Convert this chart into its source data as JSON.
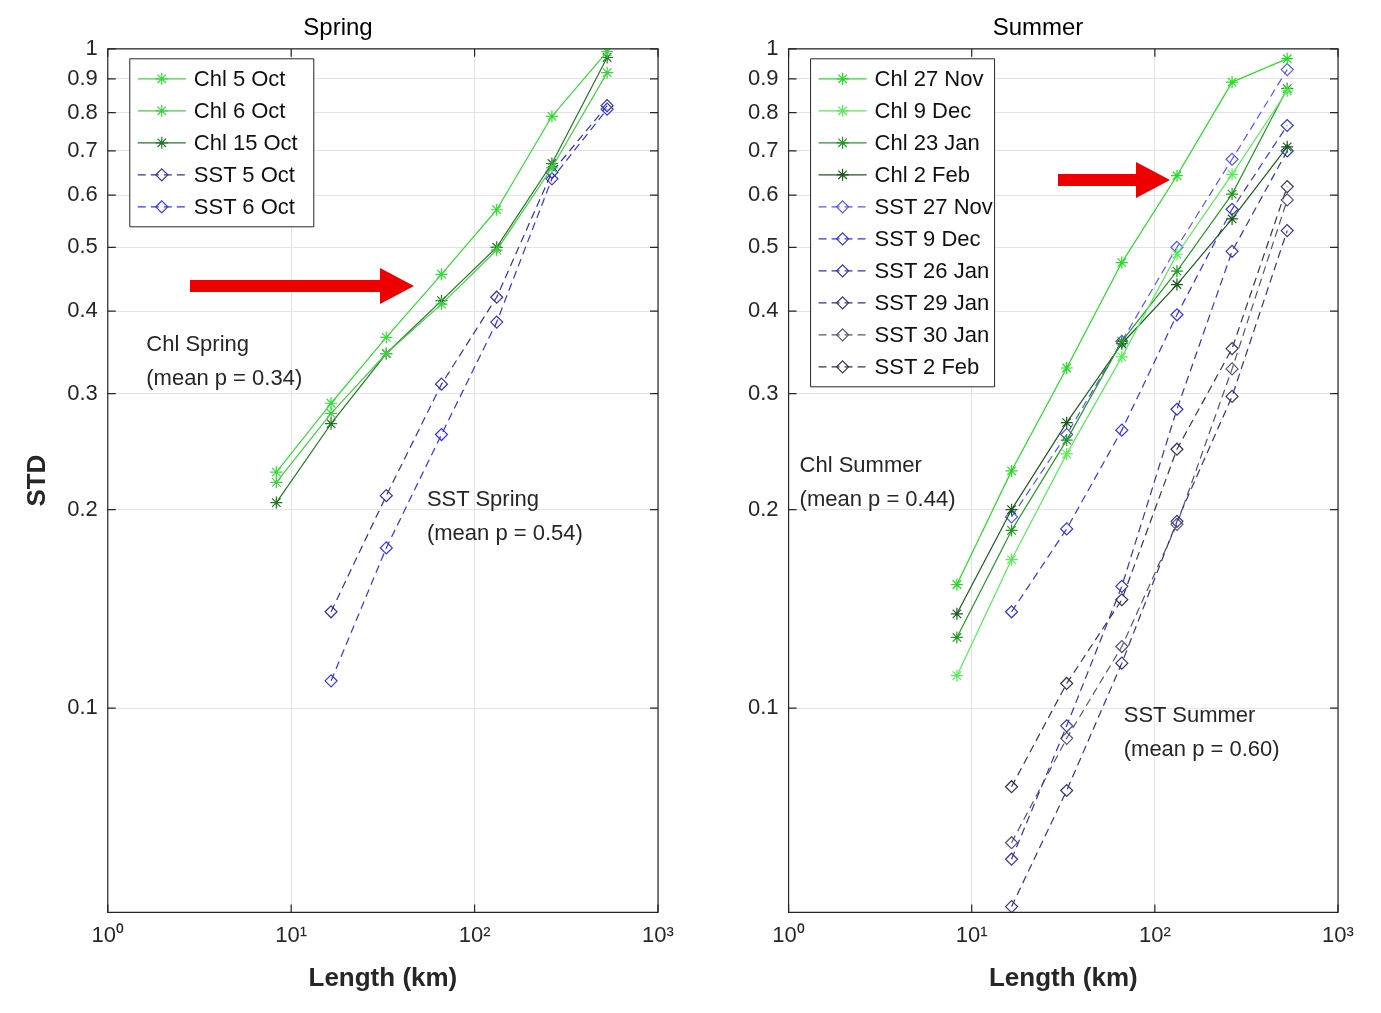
{
  "chart_data": [
    {
      "type": "line",
      "title": "Spring",
      "xlabel": "Length (km)",
      "ylabel": "STD",
      "log": "xy",
      "grid": true,
      "legend": "top left",
      "x": [
        8.3,
        16.5,
        33,
        66,
        132,
        264,
        528
      ],
      "xlim": [
        1,
        1000
      ],
      "xticks": [
        {
          "value": 1,
          "label": "10⁰"
        },
        {
          "value": 10,
          "label": "10¹"
        },
        {
          "value": 100,
          "label": "10²"
        },
        {
          "value": 1000,
          "label": "10³"
        }
      ],
      "ylim": [
        0.049,
        1
      ],
      "yticks": [
        0.1,
        0.2,
        0.3,
        0.4,
        0.5,
        0.6,
        0.7,
        0.8,
        0.9,
        1
      ],
      "annotations": [
        "Chl Spring\n(mean p = 0.34)",
        "SST Spring\n(mean p = 0.54)"
      ],
      "series": [
        {
          "name": "Chl 5 Oct",
          "color": "#33dd33",
          "marker": "cross",
          "line_style": "solid",
          "values": [
            0.228,
            0.29,
            0.365,
            0.455,
            0.57,
            0.79,
            0.99
          ]
        },
        {
          "name": "Chl 6 Oct",
          "color": "#44cc44",
          "marker": "cross",
          "line_style": "solid",
          "values": [
            0.22,
            0.28,
            0.345,
            0.41,
            0.495,
            0.66,
            0.92
          ]
        },
        {
          "name": "Chl 15 Oct",
          "color": "#227722",
          "marker": "cross",
          "line_style": "solid",
          "values": [
            0.205,
            0.27,
            0.345,
            0.415,
            0.5,
            0.67,
            0.97
          ]
        },
        {
          "name": "SST 5 Oct",
          "color": "#333399",
          "marker": "diamond",
          "line_style": "dashed",
          "values": [
            null,
            0.14,
            0.21,
            0.31,
            0.42,
            0.65,
            0.82
          ]
        },
        {
          "name": "SST 6 Oct",
          "color": "#3333ee",
          "marker": "diamond",
          "line_style": "dashed",
          "values": [
            null,
            0.11,
            0.175,
            0.26,
            0.385,
            0.635,
            0.81
          ]
        }
      ]
    },
    {
      "type": "line",
      "title": "Summer",
      "xlabel": "Length (km)",
      "log": "xy",
      "grid": true,
      "legend": "top left",
      "x": [
        8.3,
        16.5,
        33,
        66,
        132,
        264,
        528
      ],
      "xlim": [
        1,
        1000
      ],
      "xticks": [
        {
          "value": 1,
          "label": "10⁰"
        },
        {
          "value": 10,
          "label": "10¹"
        },
        {
          "value": 100,
          "label": "10²"
        },
        {
          "value": 1000,
          "label": "10³"
        }
      ],
      "ylim": [
        0.049,
        1
      ],
      "yticks": [
        0.1,
        0.2,
        0.3,
        0.4,
        0.5,
        0.6,
        0.7,
        0.8,
        0.9,
        1
      ],
      "annotations": [
        "Chl Summer\n(mean p = 0.44)",
        "SST Summer\n(mean p = 0.60)"
      ],
      "series": [
        {
          "name": "Chl 27 Nov",
          "color": "#22dd22",
          "marker": "cross",
          "line_style": "solid",
          "values": [
            0.154,
            0.229,
            0.328,
            0.474,
            0.642,
            0.89,
            0.966
          ]
        },
        {
          "name": "Chl 9 Dec",
          "color": "#55ee55",
          "marker": "cross",
          "line_style": "solid",
          "values": [
            0.112,
            0.168,
            0.243,
            0.341,
            0.488,
            0.645,
            0.863
          ]
        },
        {
          "name": "Chl 23 Jan",
          "color": "#229922",
          "marker": "cross",
          "line_style": "solid",
          "values": [
            0.128,
            0.186,
            0.255,
            0.36,
            0.46,
            0.602,
            0.87
          ]
        },
        {
          "name": "Chl 2 Feb",
          "color": "#1a5a1a",
          "marker": "cross",
          "line_style": "solid",
          "values": [
            0.139,
            0.2,
            0.271,
            0.357,
            0.439,
            0.552,
            0.71
          ]
        },
        {
          "name": "SST 27 Nov",
          "color": "#5555ff",
          "marker": "diamond",
          "line_style": "dashed",
          "values": [
            null,
            0.195,
            0.26,
            0.36,
            0.5,
            0.68,
            0.93
          ]
        },
        {
          "name": "SST 9 Dec",
          "color": "#3333ee",
          "marker": "diamond",
          "line_style": "dashed",
          "values": [
            null,
            0.14,
            0.187,
            0.264,
            0.395,
            0.571,
            0.765
          ]
        },
        {
          "name": "SST 26 Jan",
          "color": "#3333bb",
          "marker": "diamond",
          "line_style": "dashed",
          "values": [
            null,
            0.059,
            0.094,
            0.153,
            0.284,
            0.493,
            0.7
          ]
        },
        {
          "name": "SST 29 Jan",
          "color": "#333388",
          "marker": "diamond",
          "line_style": "dashed",
          "values": [
            null,
            0.05,
            0.075,
            0.117,
            0.192,
            0.297,
            0.53
          ]
        },
        {
          "name": "SST 30 Jan",
          "color": "#555577",
          "marker": "diamond",
          "line_style": "dashed",
          "values": [
            null,
            0.0625,
            0.09,
            0.124,
            0.19,
            0.327,
            0.59
          ]
        },
        {
          "name": "SST 2 Feb",
          "color": "#333355",
          "marker": "diamond",
          "line_style": "dashed",
          "values": [
            null,
            0.076,
            0.109,
            0.146,
            0.247,
            0.351,
            0.618
          ]
        }
      ]
    }
  ]
}
